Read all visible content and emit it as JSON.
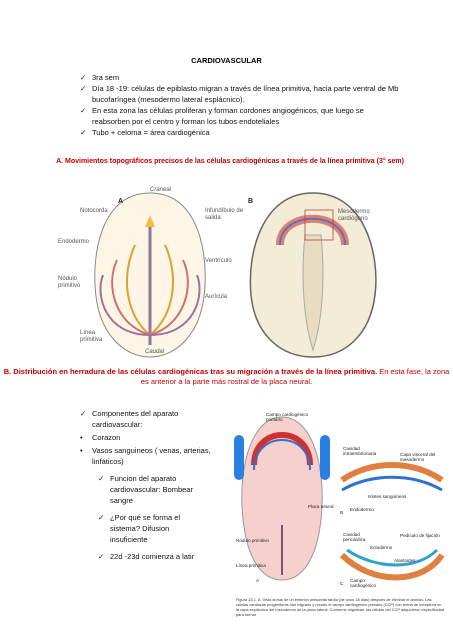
{
  "title": "CARDIOVASCULAR",
  "intro_bullets": [
    "3ra sem",
    "Día 18 -19: células de epiblasto migran a través de línea primitiva, hacia parte ventral de Mb bucofaríngea (mesodermo lateral esplácnico).",
    "En esta zona las células proliferan y forman cordones angiogénicos, que luego se reabsorben por el centro  y forman los tubos endoteliales",
    "Tubo + celoma = área cardiogénica"
  ],
  "figure_a": {
    "caption": "A. Movimientos topográficos precisos de las células cardiogénicas a través de la línea primitiva (3° sem)",
    "labels": [
      "A",
      "Craneal",
      "B",
      "Notocorda",
      "Infundíbulo de salida",
      "Mesodermo cardiógeno",
      "Endodermo",
      "Ventrículo",
      "Nódulo primitivo",
      "Aurícula",
      "Línea primitiva",
      "Caudal"
    ]
  },
  "caption_b": {
    "bold": "B. Distribución en herradura de las células cardiogénicas tras su migración a través de la línea primitiva.",
    "normal": "En esta fase, la zona es anterior a la parte más rostral de la placa neural."
  },
  "components": {
    "check_items": [
      "Componentes del  aparato cardiovascular:"
    ],
    "dot_items": [
      "Corazon",
      "Vasos sanguineos ( venas, arterias, linfáticos)"
    ],
    "sub_check_items": [
      "Funcion del aparato cardiovascular: Bombear sangre",
      "¿Por qué se forma el sistema? Difusion insuficiente",
      "22d -23d comienza a latir"
    ]
  },
  "figure_b": {
    "labels": [
      "Campo cardiogénico primario",
      "Cavidad intraembrionaria",
      "Capa visceral del mesodermo",
      "Islotes sanguíneos",
      "Endodermo",
      "Placa neural",
      "Nódulo primitivo",
      "Línea primitiva",
      "Cavidad pericárdica",
      "Ectodermo",
      "Pedículo de fijación",
      "Alantoides",
      "Campo cardiogénico",
      "A",
      "B",
      "C"
    ],
    "caption": "Figura 13-1. A. Vista dorsal de un embrión presomita tardío (de unos 18 días) después de eliminar el amnios. Las células cardiacas progenitoras han migrado y creado el campo cardiogénico primario (CCP) con forma de herradura en la capa esplácnica del mesodermo de la placa lateral. Conforme migraban, las células del CCP adquirieron especificidad para formar"
  }
}
